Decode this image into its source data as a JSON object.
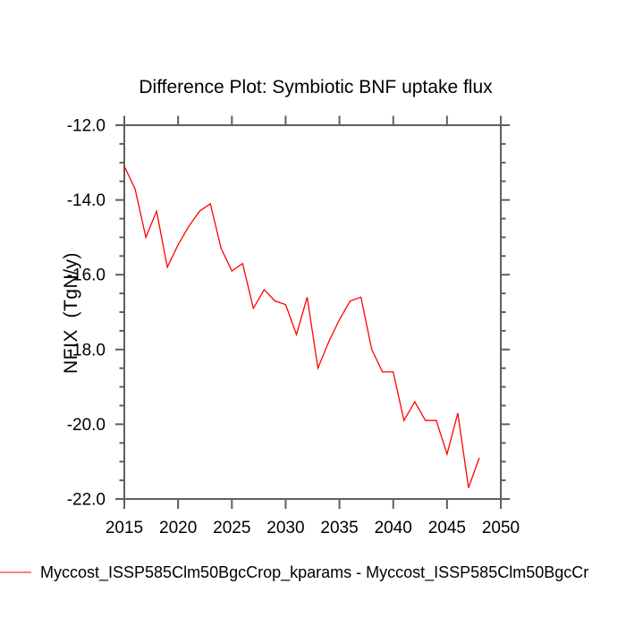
{
  "title": "Difference Plot: Symbiotic BNF uptake flux",
  "y_axis": {
    "label": "NFIX  (TgN/y)",
    "ticks": [
      -12,
      -14,
      -16,
      -18,
      -20,
      -22
    ],
    "tick_labels": [
      "-12.0",
      "-14.0",
      "-16.0",
      "-18.0",
      "-20.0",
      "-22.0"
    ],
    "minor_tick_interval": 0.5,
    "range": [
      -22,
      -12
    ]
  },
  "x_axis": {
    "ticks": [
      2015,
      2020,
      2025,
      2030,
      2035,
      2040,
      2045,
      2050
    ],
    "tick_labels": [
      "2015",
      "2020",
      "2025",
      "2030",
      "2035",
      "2040",
      "2045",
      "2050"
    ],
    "range": [
      2015,
      2050
    ]
  },
  "legend": {
    "label": "Myccost_ISSP585Clm50BgcCrop_kparams - Myccost_ISSP585Clm50BgcCr",
    "swatch_color": "#fc827a"
  },
  "colors": {
    "axis": "#5f5f5f",
    "text": "#000000",
    "background": "#ffffff",
    "series_line": "#ff0000"
  },
  "chart_data": {
    "type": "line",
    "title": "Difference Plot: Symbiotic BNF uptake flux",
    "xlabel": "",
    "ylabel": "NFIX  (TgN/y)",
    "xlim": [
      2015,
      2050
    ],
    "ylim": [
      -22,
      -12
    ],
    "grid": false,
    "legend_position": "bottom-left",
    "x": [
      2015,
      2016,
      2017,
      2018,
      2019,
      2020,
      2021,
      2022,
      2023,
      2024,
      2025,
      2026,
      2027,
      2028,
      2029,
      2030,
      2031,
      2032,
      2033,
      2034,
      2035,
      2036,
      2037,
      2038,
      2039,
      2040,
      2041,
      2042,
      2043,
      2044,
      2045,
      2046,
      2047,
      2048
    ],
    "series": [
      {
        "name": "Myccost_ISSP585Clm50BgcCrop_kparams - Myccost_ISSP585Clm50BgcCr",
        "color": "#ff0000",
        "values": [
          -13.1,
          -13.7,
          -15.0,
          -14.3,
          -15.8,
          -15.2,
          -14.7,
          -14.3,
          -14.1,
          -15.3,
          -15.9,
          -15.7,
          -16.9,
          -16.4,
          -16.7,
          -16.8,
          -17.6,
          -16.6,
          -18.5,
          -17.8,
          -17.2,
          -16.7,
          -16.6,
          -18.0,
          -18.6,
          -18.6,
          -19.9,
          -19.4,
          -19.9,
          -19.9,
          -20.8,
          -19.7,
          -21.7,
          -20.9
        ]
      }
    ]
  }
}
